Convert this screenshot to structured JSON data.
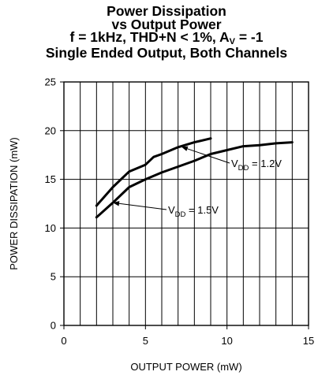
{
  "title": {
    "line1": "Power Dissipation",
    "line2": "vs Output Power",
    "line3_pre": "f = 1kHz, THD+N < 1%, A",
    "line3_sub": "V",
    "line3_post": " = -1",
    "line4": "Single Ended Output, Both Channels"
  },
  "chart_data": {
    "type": "line",
    "xlabel": "OUTPUT POWER (mW)",
    "ylabel": "POWER DISSIPATION (mW)",
    "xlim": [
      0,
      15
    ],
    "ylim": [
      0,
      25
    ],
    "x_ticks": [
      0,
      5,
      10,
      15
    ],
    "y_ticks": [
      0,
      5,
      10,
      15,
      20,
      25
    ],
    "grid": true,
    "series": [
      {
        "name": "VDD = 1.2V",
        "label_pre": "V",
        "label_sub": "DD",
        "label_post": " = 1.2V",
        "x": [
          2.0,
          3.0,
          4.0,
          5.0,
          5.5,
          6.0,
          7.0,
          8.0,
          9.0
        ],
        "y": [
          12.3,
          14.2,
          15.8,
          16.5,
          17.3,
          17.6,
          18.3,
          18.8,
          19.2
        ]
      },
      {
        "name": "VDD = 1.5V",
        "label_pre": "V",
        "label_sub": "DD",
        "label_post": " = 1.5V",
        "x": [
          2.0,
          3.0,
          4.0,
          5.0,
          6.0,
          7.0,
          8.0,
          9.0,
          10.0,
          11.0,
          12.0,
          13.0,
          14.0
        ],
        "y": [
          11.1,
          12.6,
          14.2,
          15.0,
          15.7,
          16.3,
          16.9,
          17.6,
          18.0,
          18.4,
          18.5,
          18.7,
          18.8
        ]
      }
    ]
  }
}
